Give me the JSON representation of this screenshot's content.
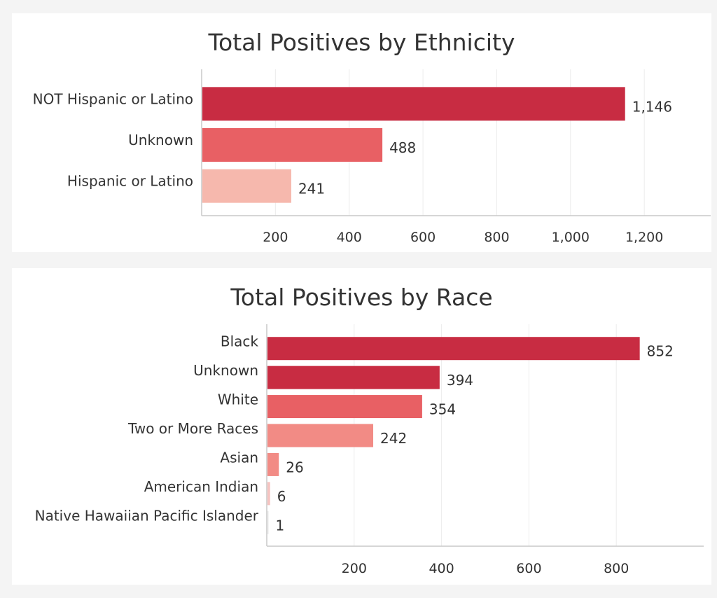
{
  "chart_data": [
    {
      "type": "bar",
      "orientation": "horizontal",
      "title": "Total Positives by Ethnicity",
      "xlabel": "",
      "ylabel": "",
      "categories": [
        "NOT Hispanic or Latino",
        "Unknown",
        "Hispanic or Latino"
      ],
      "values": [
        1146,
        488,
        241
      ],
      "value_labels": [
        "1,146",
        "488",
        "241"
      ],
      "colors": [
        "#c82c42",
        "#e86064",
        "#f6b8ad"
      ],
      "xlim": [
        0,
        1380
      ],
      "xticks": [
        200,
        400,
        600,
        800,
        1000,
        1200
      ],
      "xtick_labels": [
        "200",
        "400",
        "600",
        "800",
        "1,000",
        "1,200"
      ],
      "grid": true,
      "legend": "none"
    },
    {
      "type": "bar",
      "orientation": "horizontal",
      "title": "Total Positives by Race",
      "xlabel": "",
      "ylabel": "",
      "categories": [
        "Black",
        "Unknown",
        "White",
        "Two or More Races",
        "Asian",
        "American Indian",
        "Native Hawaiian Pacific Islander"
      ],
      "values": [
        852,
        394,
        354,
        242,
        26,
        6,
        1
      ],
      "value_labels": [
        "852",
        "394",
        "354",
        "242",
        "26",
        "6",
        "1"
      ],
      "colors": [
        "#c82c42",
        "#c82c42",
        "#e86064",
        "#f28b85",
        "#f28b85",
        "#f6c3c0",
        "#e9e9ea"
      ],
      "xlim": [
        0,
        1000
      ],
      "xticks": [
        200,
        400,
        600,
        800
      ],
      "xtick_labels": [
        "200",
        "400",
        "600",
        "800"
      ],
      "grid": true,
      "legend": "none"
    }
  ]
}
